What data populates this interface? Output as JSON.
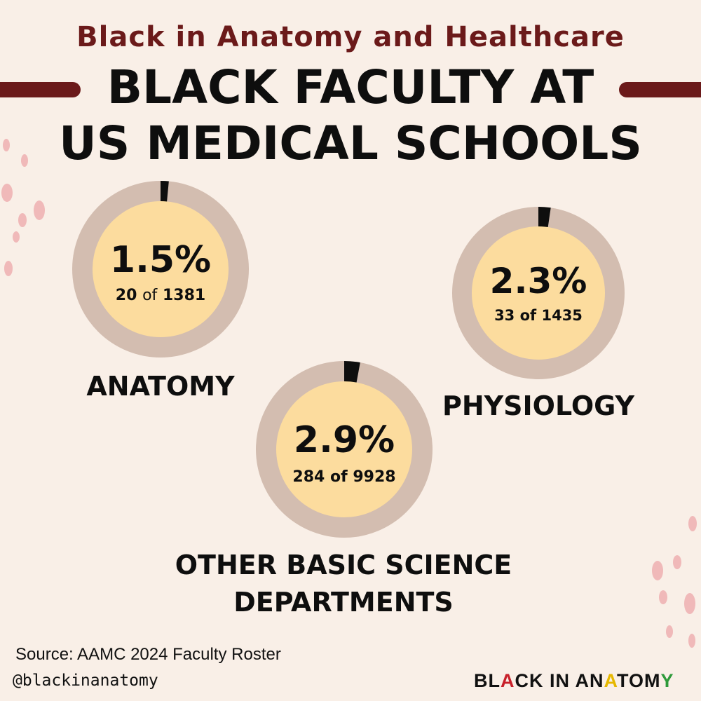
{
  "header": {
    "subtitle": "Black in Anatomy and Healthcare",
    "title_line1": "BLACK FACULTY AT",
    "title_line2": "US MEDICAL SCHOOLS"
  },
  "chart_data": [
    {
      "type": "pie",
      "category": "ANATOMY",
      "percent": 1.5,
      "percent_label": "1.5%",
      "count": 20,
      "total": 1381,
      "count_label_num": "20",
      "count_label_of": "of",
      "count_label_total": "1381"
    },
    {
      "type": "pie",
      "category": "PHYSIOLOGY",
      "percent": 2.3,
      "percent_label": "2.3%",
      "count": 33,
      "total": 1435,
      "count_label": "33 of 1435"
    },
    {
      "type": "pie",
      "category_line1": "OTHER BASIC SCIENCE",
      "category_line2": "DEPARTMENTS",
      "percent": 2.9,
      "percent_label": "2.9%",
      "count": 284,
      "total": 9928,
      "count_label": "284 of 9928"
    }
  ],
  "colors": {
    "background": "#f9efe7",
    "ring": "#d3bdb0",
    "inner": "#fcdc9e",
    "slice": "#0e0e0e",
    "accent": "#6b1a1a",
    "dots": "#f0b9b9"
  },
  "footer": {
    "source": "Source:  AAMC 2024 Faculty Roster",
    "handle": "@blackinanatomy",
    "logo_parts": [
      {
        "text": "BL",
        "color": "#111111"
      },
      {
        "text": "A",
        "color": "#c8202a"
      },
      {
        "text": "CK IN AN",
        "color": "#111111"
      },
      {
        "text": "A",
        "color": "#e6b800"
      },
      {
        "text": "TOM",
        "color": "#111111"
      },
      {
        "text": "Y",
        "color": "#2e9a3a"
      }
    ]
  }
}
